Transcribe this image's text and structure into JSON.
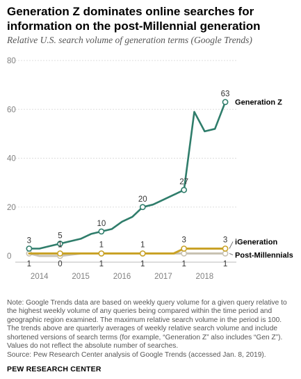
{
  "header": {
    "title": "Generation Z dominates online searches for information on the post-Millennial generation",
    "subtitle": "Relative U.S. search volume of generation terms (Google Trends)"
  },
  "colors": {
    "genz": "#2f7d6b",
    "igen": "#c9a227",
    "postmil": "#c8c2b2",
    "axis_text": "#808080",
    "grid": "#dddddd"
  },
  "chart_data": {
    "type": "line",
    "xlabel": "",
    "ylabel": "",
    "ylim": [
      0,
      80
    ],
    "yticks": [
      "0",
      "20",
      "40",
      "60",
      "80"
    ],
    "xlim": [
      2013.55,
      2018.6
    ],
    "xticks": [
      {
        "label": "2014",
        "x": 2014.0
      },
      {
        "label": "2015",
        "x": 2015.0
      },
      {
        "label": "2016",
        "x": 2016.0
      },
      {
        "label": "2017",
        "x": 2017.0
      },
      {
        "label": "2018",
        "x": 2018.0
      }
    ],
    "grid": true,
    "series": [
      {
        "name": "Generation Z",
        "color": "#2f7d6b",
        "x": [
          2013.75,
          2014.0,
          2014.25,
          2014.5,
          2014.75,
          2015.0,
          2015.25,
          2015.5,
          2015.75,
          2016.0,
          2016.25,
          2016.5,
          2016.75,
          2017.0,
          2017.25,
          2017.5,
          2017.75,
          2018.0,
          2018.25,
          2018.5
        ],
        "y": [
          3,
          3,
          4,
          5,
          6,
          7,
          9,
          10,
          11,
          14,
          16,
          20,
          21,
          23,
          25,
          27,
          59,
          51,
          52,
          63
        ],
        "labels": [
          {
            "x": 2013.75,
            "y": 3,
            "text": "3"
          },
          {
            "x": 2014.5,
            "y": 5,
            "text": "5"
          },
          {
            "x": 2015.5,
            "y": 10,
            "text": "10"
          },
          {
            "x": 2016.5,
            "y": 20,
            "text": "20"
          },
          {
            "x": 2017.5,
            "y": 27,
            "text": "27"
          },
          {
            "x": 2018.5,
            "y": 63,
            "text": "63"
          }
        ]
      },
      {
        "name": "iGeneration",
        "color": "#c9a227",
        "x": [
          2013.75,
          2014.0,
          2014.5,
          2015.0,
          2015.5,
          2016.0,
          2016.5,
          2017.0,
          2017.25,
          2017.5,
          2018.0,
          2018.5
        ],
        "y": [
          1,
          1,
          1,
          1,
          1,
          1,
          1,
          1,
          1,
          3,
          3,
          3
        ],
        "labels": [
          {
            "x": 2014.5,
            "y": 1,
            "text": "1"
          },
          {
            "x": 2015.5,
            "y": 1,
            "text": "1"
          },
          {
            "x": 2016.5,
            "y": 1,
            "text": "1"
          },
          {
            "x": 2017.5,
            "y": 3,
            "text": "3"
          },
          {
            "x": 2018.5,
            "y": 3,
            "text": "3"
          }
        ]
      },
      {
        "name": "Post-Millennials",
        "color": "#c8c2b2",
        "x": [
          2013.75,
          2014.0,
          2014.5,
          2015.0,
          2015.5,
          2016.0,
          2016.5,
          2017.0,
          2017.5,
          2018.0,
          2018.5
        ],
        "y": [
          1,
          0,
          0,
          1,
          1,
          1,
          1,
          1,
          1,
          1,
          1
        ],
        "labels": [
          {
            "x": 2013.75,
            "y": 1,
            "text": "1"
          },
          {
            "x": 2014.5,
            "y": 0,
            "text": "0"
          },
          {
            "x": 2015.5,
            "y": 1,
            "text": "1"
          },
          {
            "x": 2016.5,
            "y": 1,
            "text": "1"
          },
          {
            "x": 2017.5,
            "y": 1,
            "text": "1"
          },
          {
            "x": 2018.5,
            "y": 1,
            "text": "1"
          }
        ]
      }
    ]
  },
  "footer": {
    "note": "Note: Google Trends data are based on weekly query volume for a given query relative to the highest weekly volume of any queries being compared within the time period and geographic region examined. The maximum relative search volume in the period is 100. The trends above are quarterly averages of weekly relative search volume and include shortened versions of search terms (for example, “Generation Z” also includes “Gen Z”). Values do not reflect the absolute number of searches.",
    "source": "Source: Pew Research Center analysis of Google Trends (accessed Jan. 8, 2019).",
    "brand": "PEW RESEARCH CENTER"
  }
}
